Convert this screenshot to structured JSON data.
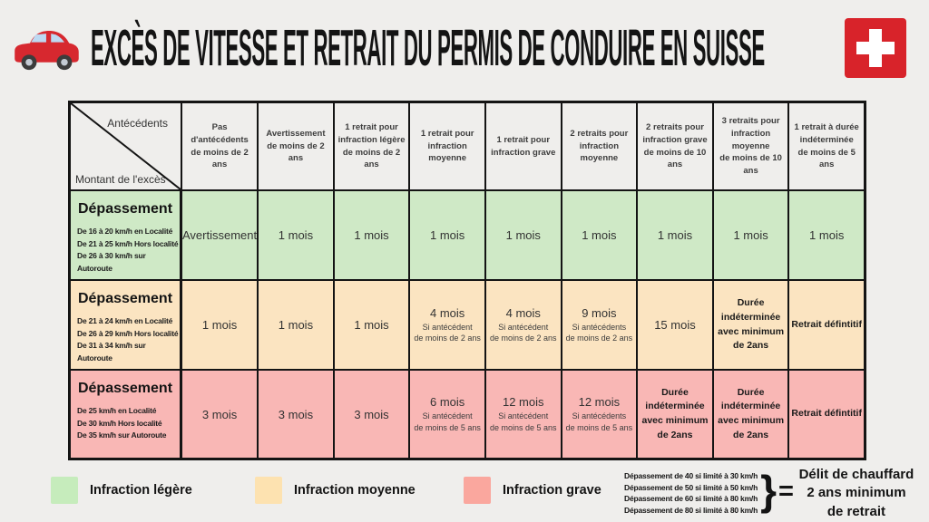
{
  "colors": {
    "page_bg": "#efeeec",
    "border": "#141414",
    "flag_red": "#d8232a",
    "legere": "#cfe9c6",
    "moyenne": "#fbe4c1",
    "grave": "#f9b7b5"
  },
  "header": {
    "title": "EXCÈS DE VITESSE ET RETRAIT DU PERMIS DE CONDUIRE EN SUISSE",
    "car_icon": "red-car",
    "flag_icon": "swiss-flag"
  },
  "chart_data": {
    "type": "table",
    "title": "Excès de vitesse et retrait du permis de conduire en Suisse",
    "corner": {
      "column_axis": "Antécédents",
      "row_axis": "Montant de l'excès"
    },
    "columns": [
      "Pas d'antécédents\nde moins de 2 ans",
      "Avertissement\nde moins de 2 ans",
      "1 retrait pour\ninfraction légère\nde moins de 2 ans",
      "1 retrait pour\ninfraction moyenne",
      "1 retrait pour\ninfraction grave",
      "2 retraits pour\ninfraction moyenne",
      "2 retraits pour\ninfraction grave\nde moins de 10 ans",
      "3 retraits pour\ninfraction moyenne\nde moins de 10 ans",
      "1 retrait à durée\nindéterminée\nde moins de 5 ans"
    ],
    "rows": [
      {
        "severity": "legere",
        "label": "Dépassement",
        "conditions": [
          "De 16 à 20 km/h en Localité",
          "De 21 à 25 km/h Hors localité",
          "De 26 à 30 km/h sur Autoroute"
        ],
        "cells": [
          {
            "main": "Avertissement"
          },
          {
            "main": "1 mois"
          },
          {
            "main": "1 mois"
          },
          {
            "main": "1 mois"
          },
          {
            "main": "1 mois"
          },
          {
            "main": "1 mois"
          },
          {
            "main": "1 mois"
          },
          {
            "main": "1 mois"
          },
          {
            "main": "1 mois"
          }
        ]
      },
      {
        "severity": "moyenne",
        "label": "Dépassement",
        "conditions": [
          "De 21 à 24 km/h en Localité",
          "De 26 à 29 km/h Hors localité",
          "De 31 à 34 km/h sur Autoroute"
        ],
        "cells": [
          {
            "main": "1 mois"
          },
          {
            "main": "1 mois"
          },
          {
            "main": "1 mois"
          },
          {
            "main": "4 mois",
            "note": "Si antécédent\nde moins de 2 ans"
          },
          {
            "main": "4 mois",
            "note": "Si antécédent\nde moins de 2 ans"
          },
          {
            "main": "9 mois",
            "note": "Si antécédents\nde moins de 2 ans"
          },
          {
            "main": "15 mois"
          },
          {
            "main": "Durée indéterminée\navec minimum\nde 2ans",
            "bold": true
          },
          {
            "main": "Retrait défintitif",
            "bold": true
          }
        ]
      },
      {
        "severity": "grave",
        "label": "Dépassement",
        "conditions": [
          "De 25 km/h en Localité",
          "De 30 km/h Hors localité",
          "De 35 km/h sur Autoroute"
        ],
        "cells": [
          {
            "main": "3 mois"
          },
          {
            "main": "3 mois"
          },
          {
            "main": "3 mois"
          },
          {
            "main": "6 mois",
            "note": "Si antécédent\nde moins de 5 ans"
          },
          {
            "main": "12 mois",
            "note": "Si antécédent\nde moins de 5 ans"
          },
          {
            "main": "12 mois",
            "note": "Si antécédents\nde moins de 5 ans"
          },
          {
            "main": "Durée indéterminée\navec minimum\nde 2ans",
            "bold": true
          },
          {
            "main": "Durée indéterminée\navec minimum\nde 2ans",
            "bold": true
          },
          {
            "main": "Retrait défintitif",
            "bold": true
          }
        ]
      }
    ]
  },
  "legend": {
    "items": [
      {
        "label": "Infraction légère",
        "color": "#c6ecbc"
      },
      {
        "label": "Infraction moyenne",
        "color": "#fde2b0"
      },
      {
        "label": "Infraction grave",
        "color": "#faa79e"
      }
    ]
  },
  "chauffard": {
    "lines": [
      "Dépassement de 40 si limité à 30 km/h",
      "Dépassement de 50 si limité à 50 km/h",
      "Dépassement de 60 si limité à 80 km/h",
      "Dépassement de 80 si limité à 80 km/h"
    ],
    "brace": "}",
    "equals": "=",
    "result": "Délit de chauffard\n2 ans minimum\nde retrait"
  }
}
